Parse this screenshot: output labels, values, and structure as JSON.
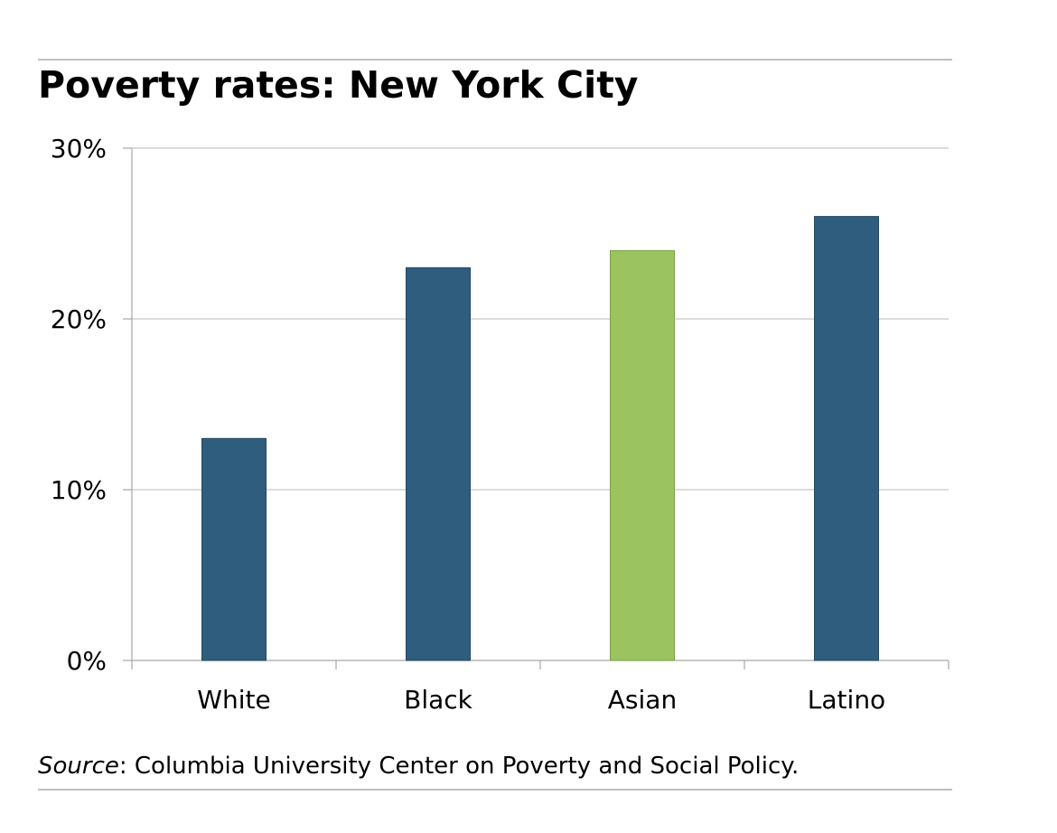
{
  "header": {
    "title": "Poverty rates: New York City"
  },
  "footer": {
    "source_label": "Source",
    "source_text": ": Columbia University Center on Poverty and Social Policy."
  },
  "colors": {
    "bar_default": "#2f5d7e",
    "bar_highlight": "#9bc35f",
    "grid": "#c8c8c8",
    "axis": "#a6a6a6"
  },
  "chart_data": {
    "type": "bar",
    "title": "Poverty rates: New York City",
    "xlabel": "",
    "ylabel": "",
    "categories": [
      "White",
      "Black",
      "Asian",
      "Latino"
    ],
    "values": [
      13,
      23,
      24,
      26
    ],
    "highlight": [
      "",
      "",
      "Asian",
      ""
    ],
    "ylim": [
      0,
      30
    ],
    "yticks": [
      0,
      10,
      20,
      30
    ],
    "ytick_labels": [
      "0%",
      "10%",
      "20%",
      "30%"
    ],
    "grid": true,
    "legend": "none"
  }
}
